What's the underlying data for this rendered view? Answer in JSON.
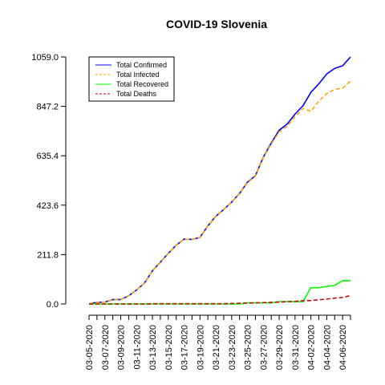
{
  "chart_data": {
    "type": "line",
    "title": "COVID-19 Slovenia",
    "xlabel": "",
    "ylabel": "",
    "x": [
      "03-05-2020",
      "03-06-2020",
      "03-07-2020",
      "03-08-2020",
      "03-09-2020",
      "03-10-2020",
      "03-11-2020",
      "03-12-2020",
      "03-13-2020",
      "03-14-2020",
      "03-15-2020",
      "03-16-2020",
      "03-17-2020",
      "03-18-2020",
      "03-19-2020",
      "03-20-2020",
      "03-21-2020",
      "03-22-2020",
      "03-23-2020",
      "03-24-2020",
      "03-25-2020",
      "03-26-2020",
      "03-27-2020",
      "03-28-2020",
      "03-29-2020",
      "03-30-2020",
      "03-31-2020",
      "04-01-2020",
      "04-02-2020",
      "04-03-2020",
      "04-04-2020",
      "04-05-2020",
      "04-06-2020",
      "04-07-2020"
    ],
    "x_tick_labels": [
      "03-05-2020",
      "03-07-2020",
      "03-09-2020",
      "03-11-2020",
      "03-13-2020",
      "03-15-2020",
      "03-17-2020",
      "03-19-2020",
      "03-21-2020",
      "03-23-2020",
      "03-25-2020",
      "03-27-2020",
      "03-29-2020",
      "03-31-2020",
      "04-02-2020",
      "04-04-2020",
      "04-06-2020"
    ],
    "y_ticks": [
      "0.0",
      "211.8",
      "423.6",
      "635.4",
      "847.2",
      "1059.0"
    ],
    "ylim": [
      0,
      1059
    ],
    "grid": false,
    "legend_position": "top-left",
    "series": [
      {
        "name": "Total Confirmed",
        "color": "#0000ff",
        "dash": "solid",
        "values": [
          1,
          7,
          8,
          19,
          19,
          35,
          60,
          90,
          142,
          179,
          217,
          252,
          278,
          277,
          285,
          335,
          376,
          405,
          437,
          474,
          522,
          550,
          630,
          690,
          745,
          771,
          814,
          850,
          907,
          944,
          986,
          1010,
          1021,
          1059
        ]
      },
      {
        "name": "Total Infected",
        "color": "#ffa500",
        "dash": "dashed",
        "values": [
          1,
          7,
          8,
          19,
          19,
          35,
          60,
          90,
          142,
          179,
          217,
          252,
          278,
          277,
          285,
          335,
          376,
          405,
          437,
          474,
          520,
          548,
          628,
          686,
          738,
          762,
          802,
          838,
          826,
          870,
          902,
          920,
          925,
          955
        ]
      },
      {
        "name": "Total Recovered",
        "color": "#00ff00",
        "dash": "solid",
        "values": [
          0,
          0,
          0,
          0,
          0,
          0,
          0,
          0,
          0,
          0,
          0,
          0,
          0,
          0,
          0,
          0,
          0,
          0,
          0,
          0,
          5,
          5,
          5,
          5,
          10,
          10,
          10,
          10,
          70,
          70,
          75,
          80,
          100,
          100
        ]
      },
      {
        "name": "Total Deaths",
        "color": "#cd0000",
        "dash": "dashed",
        "values": [
          0,
          0,
          0,
          0,
          0,
          0,
          0,
          0,
          1,
          1,
          1,
          1,
          1,
          1,
          1,
          1,
          1,
          1,
          2,
          3,
          4,
          5,
          6,
          7,
          8,
          10,
          11,
          14,
          15,
          18,
          21,
          25,
          28,
          36
        ]
      }
    ]
  }
}
